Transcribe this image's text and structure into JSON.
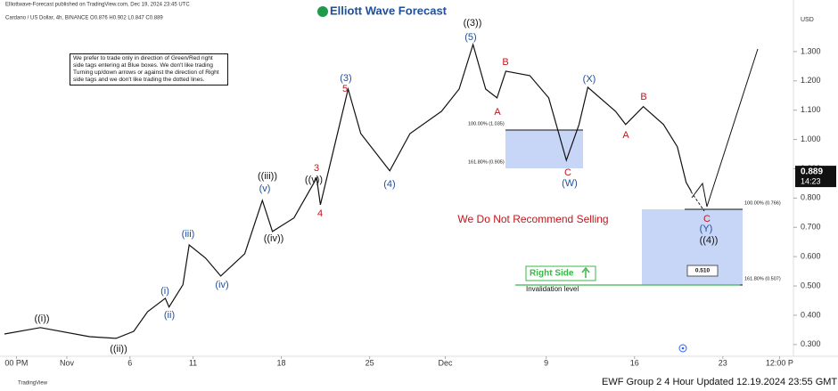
{
  "chart_data": {
    "type": "line",
    "publisher": "Elliottwave-Forecast published on TradingView.com, Dec 19, 2024 23:45 UTC",
    "symbol_info": "Cardano / US Dollar, 4h, BINANCE  O0.876 H0.902 L0.847 C0.889",
    "logo": "Elliott Wave Forecast",
    "currency": "USD",
    "note": "We prefer to trade only in direction of Green/Red right side tags entering at Blue boxes. We don't like trading Turning up/down arrows or against the direction of Right side tags and we don't like trading the dotted lines.",
    "headline": "We Do Not Recommend Selling",
    "right_side": "Right Side",
    "invalidation": "Invalidation level",
    "fib_labels": [
      "100.00% (1.035)",
      "161.80% (0.905)",
      "100.00% (0.766)",
      "161.80% (0.507)"
    ],
    "box_label": {
      "value": 0.51,
      "label": "0.510"
    },
    "last_price": 0.889,
    "countdown": "14:23",
    "footer_brand": "TradingView",
    "footer": "EWF Group 2 4 Hour Updated 12.19.2024 23:55 GMT",
    "color": "#111111",
    "x": [
      -3.95,
      -1.1,
      2.8,
      4.9,
      6.3,
      7.4,
      8.8,
      9.1,
      10.2,
      10.7,
      12,
      13.2,
      15.1,
      16.5,
      17.3,
      19,
      20.8,
      21.1,
      23.3,
      24.3,
      26.6,
      28.2,
      30.7,
      32.1,
      33.2,
      34.2,
      35.1,
      35.8,
      37.7,
      39.2,
      40.6,
      41.6,
      42.3,
      44.5,
      45.3,
      46.7,
      48.3,
      49.4,
      50.1,
      50.5
    ],
    "values": [
      0.336,
      0.358,
      0.327,
      0.321,
      0.345,
      0.412,
      0.458,
      0.428,
      0.504,
      0.64,
      0.595,
      0.534,
      0.61,
      0.792,
      0.686,
      0.732,
      0.868,
      0.777,
      1.172,
      1.02,
      0.893,
      1.02,
      1.096,
      1.172,
      1.324,
      1.172,
      1.142,
      1.233,
      1.218,
      1.142,
      0.929,
      1.051,
      1.178,
      1.096,
      1.051,
      1.112,
      1.051,
      0.975,
      0.853,
      0.823
    ],
    "xlim": [
      -4.3,
      58.6
    ],
    "xticks": [
      {
        "value": -3,
        "label": "00 PM"
      },
      {
        "value": 1,
        "label": "Nov"
      },
      6,
      11,
      18,
      25,
      {
        "value": 31,
        "label": "Dec"
      },
      {
        "value": 39,
        "label": "9"
      },
      {
        "value": 46,
        "label": "16"
      },
      {
        "value": 53,
        "label": "23"
      },
      {
        "value": 57.5,
        "label": "12:00 P"
      }
    ],
    "ylim": [
      0.26,
      1.476
    ],
    "yticks": [
      {
        "value": 1.3,
        "label": "1.300"
      },
      {
        "value": 1.2,
        "label": "1.200"
      },
      {
        "value": 1.1,
        "label": "1.100"
      },
      {
        "value": 1,
        "label": "1.000"
      },
      {
        "value": 0.9,
        "label": "0.900"
      },
      {
        "value": 0.8,
        "label": "0.800"
      },
      {
        "value": 0.7,
        "label": "0.700"
      },
      {
        "value": 0.6,
        "label": "0.600"
      },
      {
        "value": 0.5,
        "label": "0.500"
      },
      {
        "value": 0.4,
        "label": "0.400"
      },
      {
        "value": 0.3,
        "label": "0.300"
      }
    ],
    "wave_labels": [
      {
        "text": "((i))",
        "color": "#111111"
      },
      {
        "text": "((ii))",
        "color": "#111111"
      },
      {
        "text": "(i)",
        "color": "#1f4e9c"
      },
      {
        "text": "(ii)",
        "color": "#1f4e9c"
      },
      {
        "text": "(iii)",
        "color": "#1f4e9c"
      },
      {
        "text": "(iv)",
        "color": "#1f4e9c"
      },
      {
        "text": "(v)",
        "color": "#1f4e9c"
      },
      {
        "text": "((iii))",
        "color": "#111111"
      },
      {
        "text": "((iv))",
        "color": "#111111"
      },
      {
        "text": "((v))",
        "color": "#111111"
      },
      {
        "text": "3",
        "color": "#c0161c"
      },
      {
        "text": "4",
        "color": "#c0161c"
      },
      {
        "text": "5",
        "color": "#c0161c"
      },
      {
        "text": "(3)",
        "color": "#1f4e9c"
      },
      {
        "text": "(4)",
        "color": "#1f4e9c"
      },
      {
        "text": "((3))",
        "color": "#111111"
      },
      {
        "text": "(5)",
        "color": "#1f4e9c"
      },
      {
        "text": "A",
        "color": "#c0161c"
      },
      {
        "text": "B",
        "color": "#c0161c"
      },
      {
        "text": "C",
        "color": "#c0161c"
      },
      {
        "text": "(W)",
        "color": "#1f4e9c"
      },
      {
        "text": "(X)",
        "color": "#1f4e9c"
      },
      {
        "text": "A",
        "color": "#c0161c"
      },
      {
        "text": "B",
        "color": "#c0161c"
      },
      {
        "text": "C",
        "color": "#c0161c"
      },
      {
        "text": "(Y)",
        "color": "#1f4e9c"
      },
      {
        "text": "((4))",
        "color": "#111111"
      }
    ]
  }
}
